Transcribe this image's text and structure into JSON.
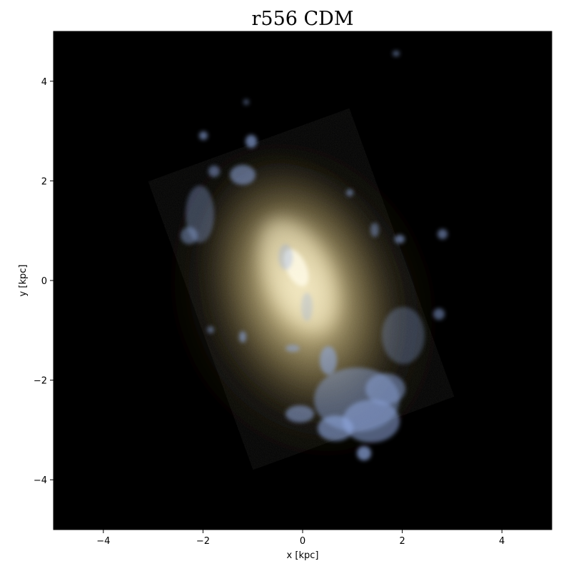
{
  "title": "r556 CDM",
  "x_axis": {
    "label": "x [kpc]",
    "range": [
      -5,
      5
    ],
    "ticks": [
      -4,
      -2,
      0,
      2,
      4
    ],
    "tick_labels": [
      "−4",
      "−2",
      "0",
      "2",
      "4"
    ]
  },
  "y_axis": {
    "label": "y [kpc]",
    "range": [
      -5,
      5
    ],
    "ticks": [
      4,
      2,
      0,
      -2,
      -4
    ],
    "tick_labels": [
      "4",
      "2",
      "0",
      "−2",
      "−4"
    ]
  },
  "image": {
    "subject": "stellar light projection of simulated galaxy",
    "background_color": "#000000",
    "core_color": "#f2e6b4",
    "disk_color": "#8a7a4a",
    "young_star_color": "#8fa8e0"
  }
}
